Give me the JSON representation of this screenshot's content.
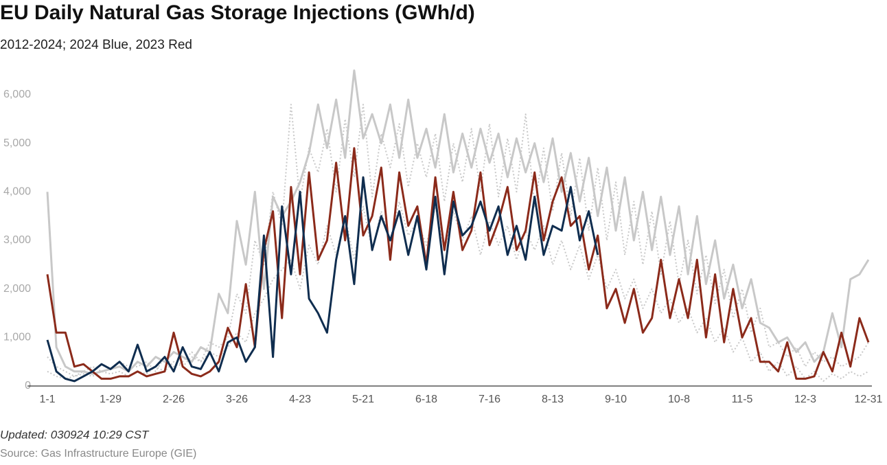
{
  "chart_data": {
    "type": "line",
    "title": "EU Daily Natural Gas Storage Injections (GWh/d)",
    "subtitle": "2012-2024; 2024 Blue, 2023 Red",
    "note": "Updated: 030924 10:29 CST",
    "source": "Source: Gas Infrastructure Europe (GIE)",
    "xlim": [
      1,
      365
    ],
    "xticks": [
      {
        "value": 1,
        "label": "1-1"
      },
      {
        "value": 29,
        "label": "1-29"
      },
      {
        "value": 57,
        "label": "2-26"
      },
      {
        "value": 85,
        "label": "3-26"
      },
      {
        "value": 113,
        "label": "4-23"
      },
      {
        "value": 141,
        "label": "5-21"
      },
      {
        "value": 169,
        "label": "6-18"
      },
      {
        "value": 197,
        "label": "7-16"
      },
      {
        "value": 225,
        "label": "8-13"
      },
      {
        "value": 253,
        "label": "9-10"
      },
      {
        "value": 281,
        "label": "10-8"
      },
      {
        "value": 309,
        "label": "11-5"
      },
      {
        "value": 337,
        "label": "12-3"
      },
      {
        "value": 365,
        "label": "12-31"
      }
    ],
    "ylim": [
      0,
      6500
    ],
    "yticks": [
      0,
      {
        "value": 1000,
        "label": "1,000"
      },
      {
        "value": 2000,
        "label": "2,000"
      },
      {
        "value": 3000,
        "label": "3,000"
      },
      {
        "value": 4000,
        "label": "4,000"
      },
      {
        "value": 5000,
        "label": "5,000"
      },
      {
        "value": 6000,
        "label": "6,000"
      }
    ],
    "x": [
      1,
      5,
      9,
      13,
      17,
      21,
      25,
      29,
      33,
      37,
      41,
      45,
      49,
      53,
      57,
      61,
      65,
      69,
      73,
      77,
      81,
      85,
      89,
      93,
      97,
      101,
      105,
      109,
      113,
      117,
      121,
      125,
      129,
      133,
      137,
      141,
      145,
      149,
      153,
      157,
      161,
      165,
      169,
      173,
      177,
      181,
      185,
      189,
      193,
      197,
      201,
      205,
      209,
      213,
      217,
      221,
      225,
      229,
      233,
      237,
      241,
      245,
      249,
      253,
      257,
      261,
      265,
      269,
      273,
      277,
      281,
      285,
      289,
      293,
      297,
      301,
      305,
      309,
      313,
      317,
      321,
      325,
      329,
      333,
      337,
      341,
      345,
      349,
      353,
      357,
      361,
      365
    ],
    "series": [
      {
        "color": "#c8c8c8",
        "dash": false,
        "values": [
          4000,
          800,
          400,
          300,
          300,
          250,
          300,
          350,
          400,
          300,
          500,
          400,
          600,
          500,
          700,
          600,
          500,
          800,
          700,
          1900,
          1500,
          3400,
          2500,
          4000,
          2000,
          3900,
          3500,
          3800,
          4200,
          4800,
          5800,
          4900,
          5900,
          4700,
          6500,
          5100,
          5600,
          5000,
          5800,
          4700,
          5900,
          4700,
          5300,
          4500,
          5600,
          4400,
          5200,
          4500,
          5300,
          4600,
          5200,
          4300,
          5100,
          4400,
          5000,
          4200,
          5100,
          4000,
          4800,
          3800,
          4700,
          3500,
          4500,
          3200,
          4300,
          3000,
          4000,
          2800,
          3900,
          2700,
          3700,
          2300,
          3500,
          2100,
          3000,
          1800,
          2500,
          1600,
          2200,
          1300,
          1200,
          900,
          1000,
          700,
          900,
          500,
          700,
          1500,
          800,
          2200,
          2300,
          2600
        ]
      },
      {
        "color": "#c8c8c8",
        "dash": true,
        "values": [
          600,
          400,
          300,
          200,
          300,
          400,
          300,
          350,
          500,
          400,
          400,
          500,
          300,
          600,
          400,
          500,
          700,
          500,
          900,
          800,
          1000,
          1900,
          1500,
          3000,
          2500,
          4000,
          3300,
          5800,
          3800,
          4900,
          4400,
          5300,
          4000,
          5500,
          4300,
          5800,
          3900,
          5200,
          4500,
          5400,
          4100,
          5000,
          4300,
          5200,
          3800,
          5000,
          4200,
          5300,
          4000,
          5400,
          3900,
          5100,
          4000,
          5600,
          3700,
          4900,
          3600,
          4800,
          3500,
          4700,
          3200,
          4500,
          3000,
          4200,
          2700,
          3800,
          2500,
          3600,
          2300,
          3400,
          2100,
          3000,
          1900,
          2700,
          1700,
          2400,
          1400,
          2000,
          1100,
          1600,
          800,
          900,
          600,
          800,
          400,
          700,
          500,
          600,
          400,
          500,
          600,
          900
        ]
      },
      {
        "color": "#c8c8c8",
        "dash": true,
        "values": [
          300,
          200,
          150,
          200,
          250,
          200,
          300,
          250,
          300,
          200,
          300,
          250,
          400,
          300,
          500,
          400,
          600,
          500,
          700,
          600,
          800,
          1100,
          900,
          1500,
          1800,
          2200,
          2400,
          2600,
          2000,
          2900,
          2500,
          3300,
          2700,
          3500,
          2600,
          3700,
          2800,
          3600,
          3000,
          3800,
          3100,
          3400,
          2900,
          3700,
          2800,
          3600,
          3000,
          3500,
          2700,
          3400,
          2900,
          3300,
          2600,
          3200,
          2800,
          3300,
          2500,
          3000,
          2400,
          2900,
          2200,
          2700,
          2000,
          2400,
          1800,
          2200,
          1600,
          2000,
          1500,
          1800,
          1300,
          1600,
          1100,
          1400,
          900,
          1200,
          700,
          1000,
          500,
          700,
          300,
          500,
          200,
          400,
          150,
          300,
          100,
          250,
          150,
          300,
          200,
          300
        ]
      },
      {
        "color": "#8b2a1a",
        "dash": false,
        "values": [
          2300,
          1100,
          1100,
          400,
          450,
          300,
          150,
          150,
          200,
          200,
          300,
          200,
          250,
          300,
          1100,
          400,
          250,
          200,
          300,
          500,
          1200,
          800,
          2100,
          800,
          2800,
          3600,
          1400,
          4100,
          2300,
          4400,
          2600,
          3000,
          4600,
          3000,
          4900,
          3100,
          3500,
          4500,
          2600,
          4400,
          3300,
          3700,
          2500,
          4300,
          2800,
          4000,
          2800,
          3200,
          4400,
          2900,
          3400,
          4100,
          2800,
          3200,
          4400,
          3000,
          3800,
          4300,
          3300,
          3500,
          2400,
          3100,
          1600,
          2000,
          1300,
          2000,
          1100,
          1400,
          2600,
          1400,
          2200,
          1400,
          2600,
          1000,
          2300,
          900,
          2000,
          1000,
          1400,
          500,
          500,
          300,
          900,
          150,
          150,
          200,
          700,
          300,
          1100,
          400,
          1400,
          900
        ]
      },
      {
        "color": "#0f2d4f",
        "dash": false,
        "values": [
          950,
          300,
          150,
          100,
          200,
          300,
          450,
          350,
          500,
          300,
          850,
          300,
          400,
          600,
          300,
          800,
          400,
          350,
          700,
          300,
          900,
          1000,
          500,
          800,
          3100,
          600,
          3700,
          2300,
          4000,
          1800,
          1500,
          1100,
          2600,
          3500,
          2100,
          4300,
          2800,
          3500,
          3000,
          3600,
          2700,
          3500,
          2400,
          3900,
          2300,
          3800,
          3100,
          3300,
          3800,
          3200,
          3700,
          2700,
          3300,
          2600,
          3900,
          2700,
          3300,
          3200,
          4100,
          3000,
          3600,
          2700,
          null,
          null,
          null,
          null,
          null,
          null,
          null,
          null,
          null,
          null,
          null,
          null,
          null,
          null,
          null,
          null,
          null,
          null,
          null,
          null,
          null,
          null,
          null,
          null,
          null,
          null,
          null,
          null,
          null,
          null
        ]
      }
    ]
  }
}
